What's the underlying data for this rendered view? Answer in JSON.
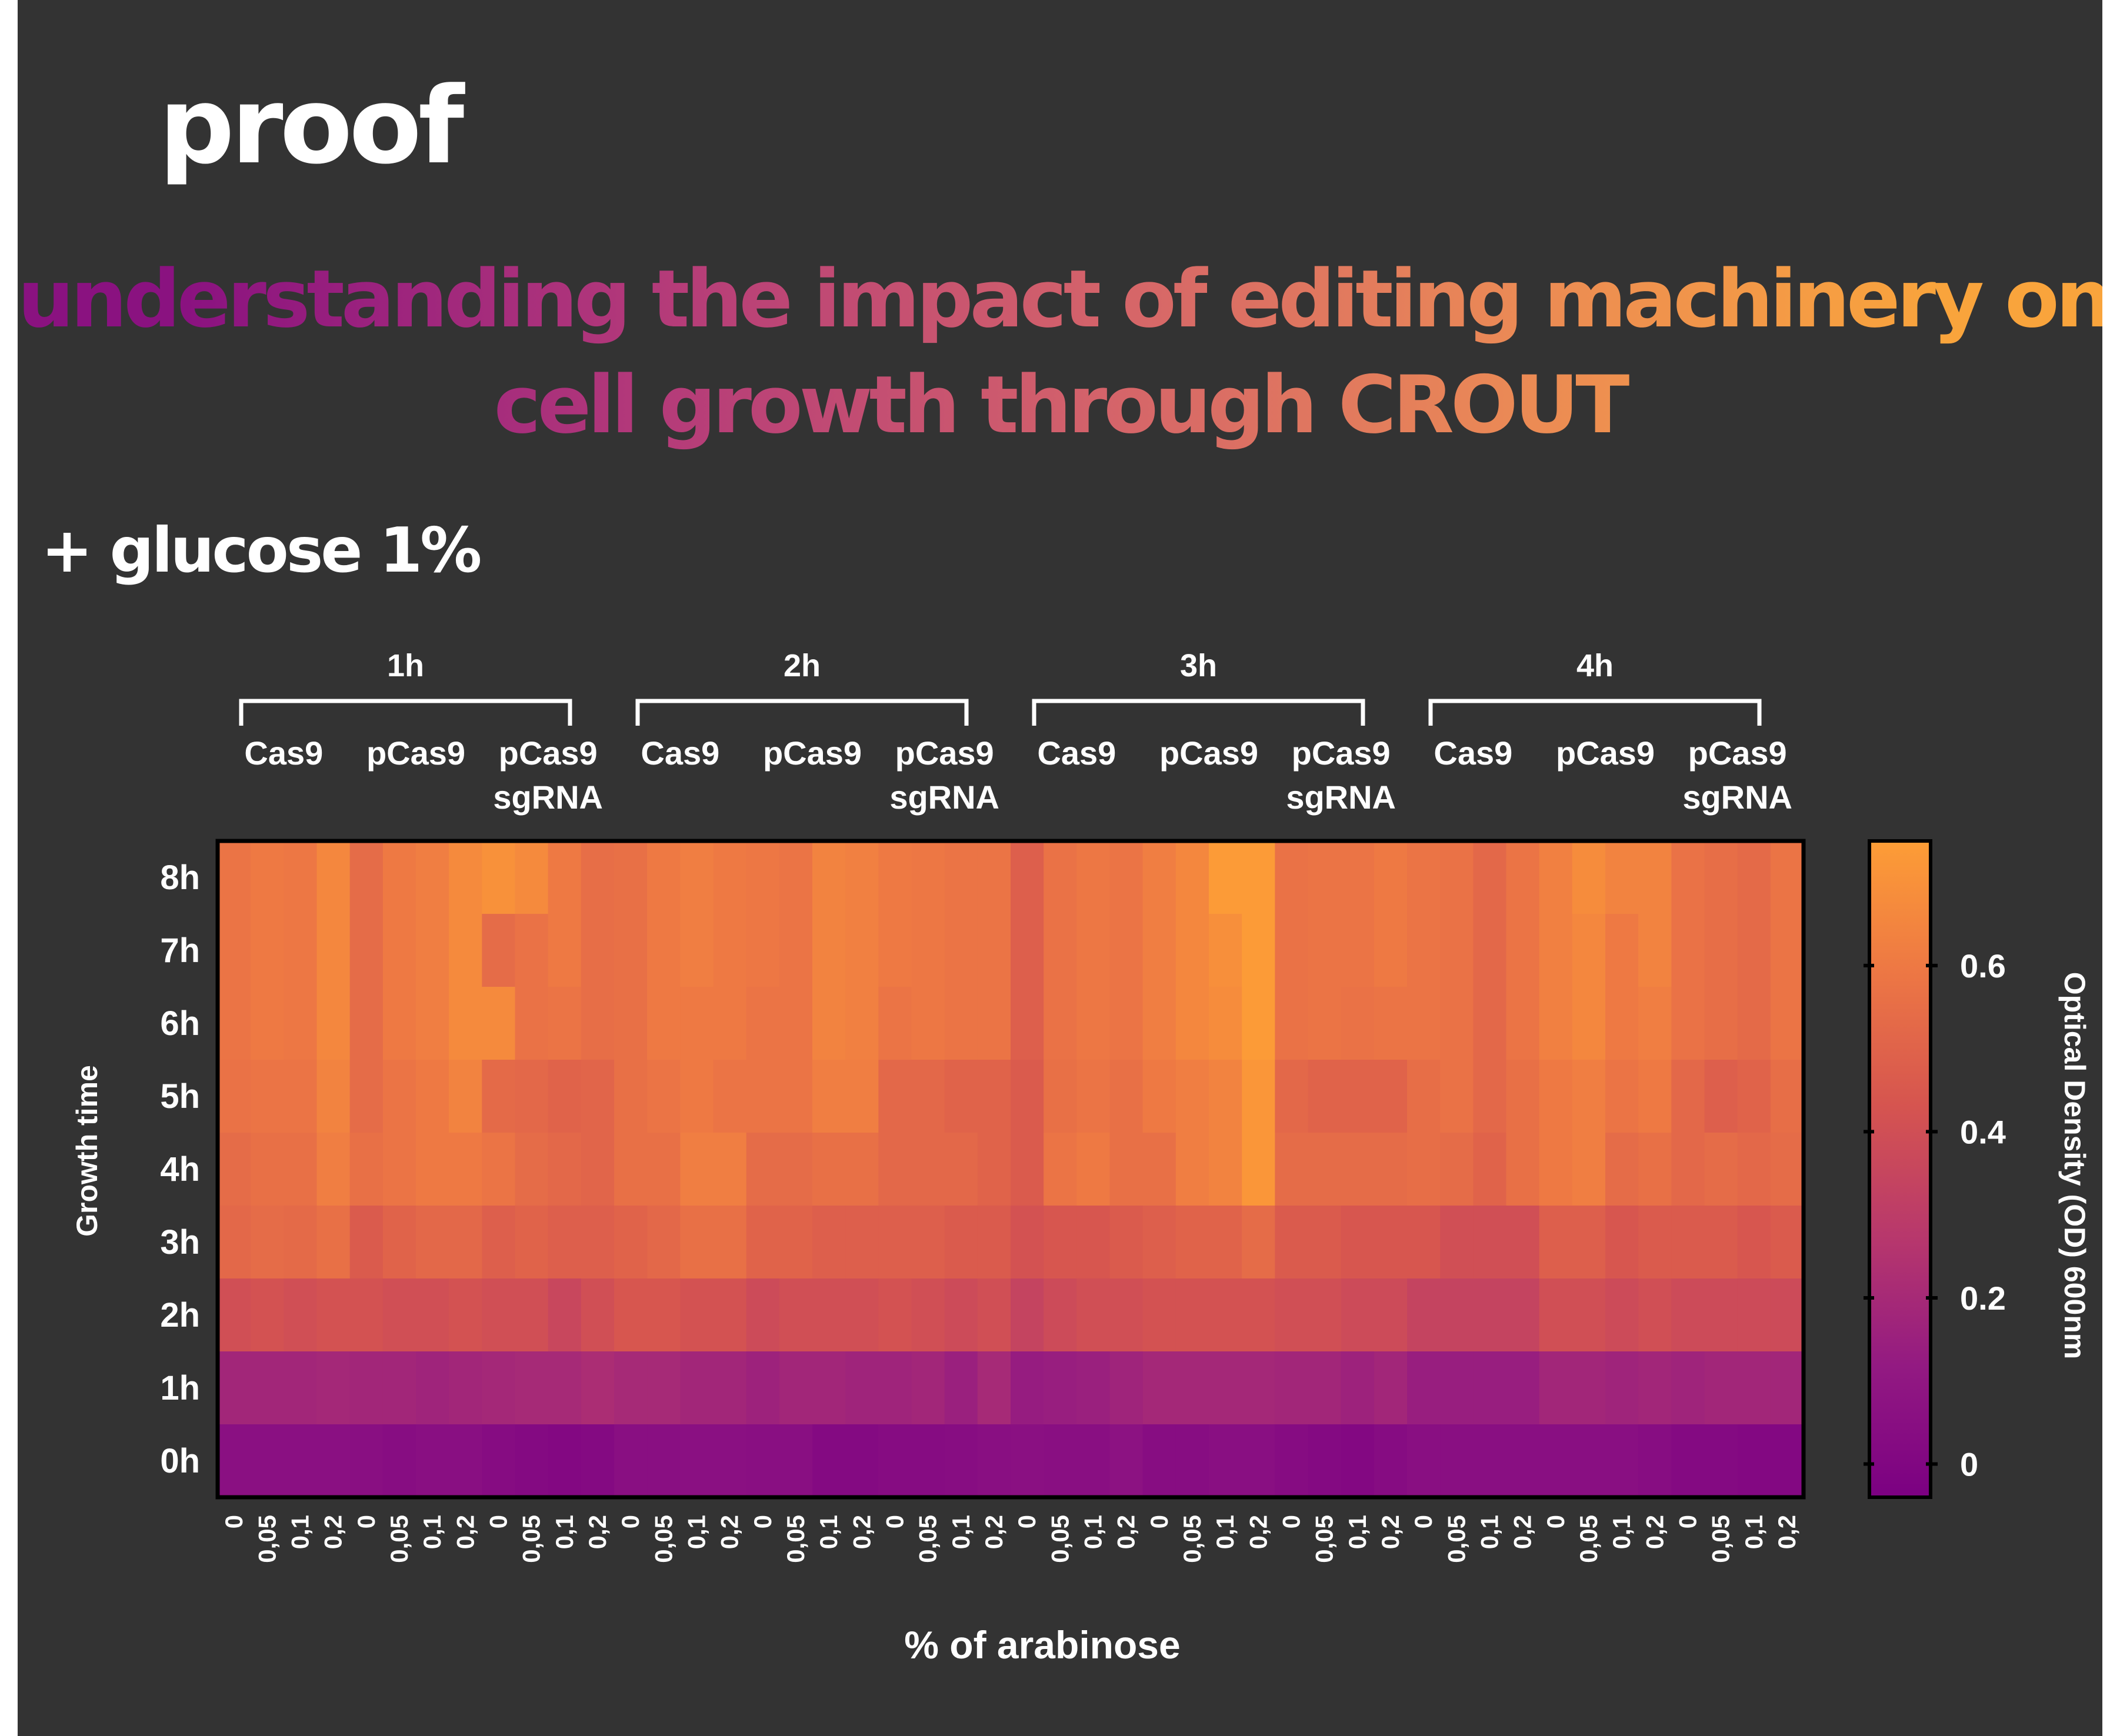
{
  "header": {
    "title": "proof",
    "headline_line1": "understanding the impact of editing machinery on",
    "headline_line2": "cell growth through CROUT",
    "condition": "+ glucose 1%"
  },
  "colors": {
    "background": "#333333",
    "colormap": "plasma (purple #7b0082 → orange #fd9d36)",
    "text": "#ffffff"
  },
  "chart_data": {
    "type": "heatmap",
    "title": "",
    "xlabel": "% of arabinose",
    "ylabel": "Growth time",
    "colorbar_label": "Optical Density (OD) 600nm",
    "colorbar_ticks": [
      0,
      0.2,
      0.4,
      0.6
    ],
    "colorbar_ticklabels": [
      "0",
      "0.2",
      "0.4",
      "0.6"
    ],
    "vmin": -0.04,
    "vmax": 0.75,
    "induction_groups": [
      "1h",
      "2h",
      "3h",
      "4h"
    ],
    "strains": [
      {
        "line1": "Cas9",
        "line2": ""
      },
      {
        "line1": "pCas9",
        "line2": ""
      },
      {
        "line1": "pCas9",
        "line2": "sgRNA"
      }
    ],
    "arabinose_levels": [
      "0",
      "0,05",
      "0,1",
      "0,2"
    ],
    "rows": [
      "8h",
      "7h",
      "6h",
      "5h",
      "4h",
      "3h",
      "2h",
      "1h",
      "0h"
    ],
    "values": [
      [
        0.58,
        0.6,
        0.59,
        0.66,
        0.54,
        0.6,
        0.62,
        0.67,
        0.7,
        0.67,
        0.6,
        0.55,
        0.56,
        0.6,
        0.62,
        0.6,
        0.59,
        0.58,
        0.64,
        0.63,
        0.6,
        0.59,
        0.58,
        0.58,
        0.48,
        0.57,
        0.59,
        0.58,
        0.62,
        0.66,
        0.74,
        0.74,
        0.57,
        0.58,
        0.58,
        0.6,
        0.58,
        0.57,
        0.52,
        0.58,
        0.63,
        0.68,
        0.64,
        0.64,
        0.57,
        0.55,
        0.53,
        0.58
      ],
      [
        0.58,
        0.6,
        0.59,
        0.66,
        0.54,
        0.6,
        0.62,
        0.67,
        0.54,
        0.57,
        0.6,
        0.55,
        0.56,
        0.6,
        0.62,
        0.6,
        0.59,
        0.58,
        0.64,
        0.63,
        0.6,
        0.59,
        0.58,
        0.58,
        0.48,
        0.57,
        0.59,
        0.58,
        0.62,
        0.66,
        0.69,
        0.74,
        0.57,
        0.58,
        0.58,
        0.6,
        0.58,
        0.57,
        0.52,
        0.58,
        0.63,
        0.66,
        0.6,
        0.64,
        0.57,
        0.55,
        0.53,
        0.58
      ],
      [
        0.58,
        0.6,
        0.59,
        0.66,
        0.54,
        0.6,
        0.62,
        0.67,
        0.67,
        0.57,
        0.58,
        0.55,
        0.56,
        0.6,
        0.6,
        0.6,
        0.58,
        0.58,
        0.64,
        0.63,
        0.58,
        0.59,
        0.58,
        0.58,
        0.48,
        0.57,
        0.59,
        0.58,
        0.62,
        0.66,
        0.68,
        0.74,
        0.57,
        0.58,
        0.57,
        0.58,
        0.58,
        0.57,
        0.52,
        0.58,
        0.63,
        0.66,
        0.6,
        0.62,
        0.57,
        0.55,
        0.53,
        0.58
      ],
      [
        0.57,
        0.58,
        0.58,
        0.64,
        0.54,
        0.58,
        0.6,
        0.64,
        0.53,
        0.52,
        0.5,
        0.51,
        0.56,
        0.58,
        0.6,
        0.58,
        0.58,
        0.58,
        0.62,
        0.62,
        0.52,
        0.52,
        0.5,
        0.5,
        0.46,
        0.56,
        0.58,
        0.56,
        0.6,
        0.62,
        0.64,
        0.72,
        0.52,
        0.5,
        0.5,
        0.5,
        0.55,
        0.57,
        0.52,
        0.56,
        0.6,
        0.62,
        0.58,
        0.6,
        0.52,
        0.48,
        0.5,
        0.55
      ],
      [
        0.54,
        0.56,
        0.56,
        0.62,
        0.56,
        0.58,
        0.6,
        0.6,
        0.58,
        0.54,
        0.52,
        0.51,
        0.56,
        0.56,
        0.62,
        0.62,
        0.54,
        0.54,
        0.56,
        0.56,
        0.52,
        0.52,
        0.52,
        0.5,
        0.46,
        0.58,
        0.6,
        0.56,
        0.56,
        0.62,
        0.64,
        0.72,
        0.54,
        0.54,
        0.54,
        0.54,
        0.55,
        0.54,
        0.5,
        0.56,
        0.6,
        0.62,
        0.54,
        0.56,
        0.52,
        0.54,
        0.52,
        0.54
      ],
      [
        0.52,
        0.54,
        0.53,
        0.56,
        0.46,
        0.5,
        0.52,
        0.52,
        0.48,
        0.5,
        0.48,
        0.48,
        0.5,
        0.52,
        0.56,
        0.56,
        0.5,
        0.5,
        0.48,
        0.48,
        0.48,
        0.48,
        0.46,
        0.46,
        0.42,
        0.44,
        0.44,
        0.46,
        0.48,
        0.5,
        0.5,
        0.54,
        0.46,
        0.46,
        0.44,
        0.44,
        0.44,
        0.4,
        0.4,
        0.4,
        0.48,
        0.48,
        0.44,
        0.46,
        0.46,
        0.46,
        0.44,
        0.46
      ],
      [
        0.4,
        0.42,
        0.4,
        0.42,
        0.42,
        0.4,
        0.4,
        0.42,
        0.4,
        0.4,
        0.36,
        0.4,
        0.44,
        0.44,
        0.42,
        0.42,
        0.38,
        0.4,
        0.4,
        0.4,
        0.42,
        0.4,
        0.38,
        0.4,
        0.34,
        0.38,
        0.4,
        0.4,
        0.42,
        0.42,
        0.42,
        0.42,
        0.4,
        0.4,
        0.38,
        0.38,
        0.34,
        0.34,
        0.34,
        0.34,
        0.4,
        0.4,
        0.38,
        0.4,
        0.38,
        0.38,
        0.38,
        0.38
      ],
      [
        0.18,
        0.18,
        0.18,
        0.19,
        0.18,
        0.18,
        0.17,
        0.18,
        0.19,
        0.2,
        0.2,
        0.22,
        0.2,
        0.2,
        0.18,
        0.18,
        0.16,
        0.18,
        0.18,
        0.17,
        0.17,
        0.18,
        0.15,
        0.2,
        0.13,
        0.14,
        0.15,
        0.17,
        0.19,
        0.19,
        0.19,
        0.19,
        0.18,
        0.18,
        0.16,
        0.18,
        0.14,
        0.14,
        0.14,
        0.14,
        0.18,
        0.18,
        0.17,
        0.18,
        0.17,
        0.18,
        0.18,
        0.18
      ],
      [
        0.06,
        0.06,
        0.06,
        0.06,
        0.05,
        0.04,
        0.05,
        0.05,
        0.03,
        0.02,
        0.01,
        0.02,
        0.05,
        0.05,
        0.06,
        0.06,
        0.05,
        0.05,
        0.02,
        0.02,
        0.03,
        0.03,
        0.04,
        0.05,
        0.06,
        0.05,
        0.05,
        0.07,
        0.04,
        0.04,
        0.05,
        0.05,
        0.03,
        0.02,
        0.01,
        0.03,
        0.05,
        0.05,
        0.05,
        0.05,
        0.05,
        0.05,
        0.05,
        0.04,
        0.02,
        0.02,
        0.01,
        0.01
      ]
    ]
  }
}
